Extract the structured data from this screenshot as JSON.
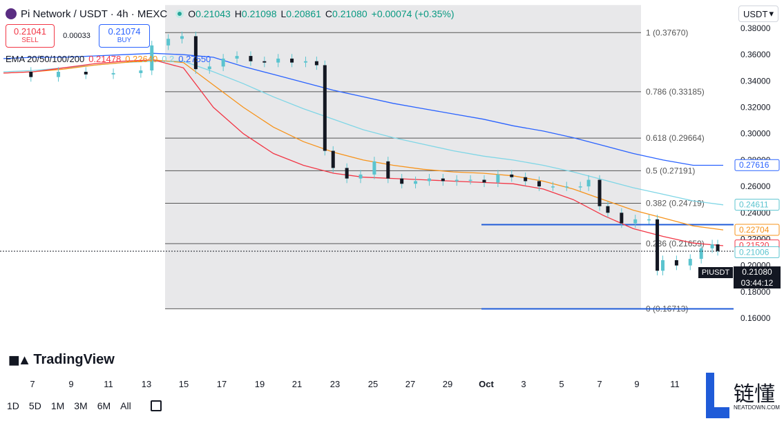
{
  "header": {
    "title": "Pi Network / USDT · 4h · MEXC",
    "ohlc": {
      "o_label": "O",
      "o": "0.21043",
      "h_label": "H",
      "h": "0.21098",
      "l_label": "L",
      "l": "0.20861",
      "c_label": "C",
      "c": "0.21080",
      "change": "+0.00074 (+0.35%)"
    }
  },
  "trade": {
    "sell_price": "0.21041",
    "sell_label": "SELL",
    "spread": "0.00033",
    "buy_price": "0.21074",
    "buy_label": "BUY"
  },
  "ema": {
    "label": "EMA 20/50/100/200",
    "v20": "0.21478",
    "v50": "0.22640",
    "v100": "0.2",
    "v200": "0.27550"
  },
  "currency": "USDT",
  "brand": "TradingView",
  "timeframes": [
    "1D",
    "5D",
    "1M",
    "3M",
    "6M",
    "All"
  ],
  "watermark": {
    "text": "链懂",
    "sub": "NEATDOWN.COM"
  },
  "last_price": {
    "symbol": "PIUSDT",
    "price": "0.21080",
    "countdown": "03:44:12"
  },
  "colors": {
    "up": "#089981",
    "down": "#131722",
    "wick": "#5bc4cf",
    "ema20": "#f23645",
    "ema50": "#f7931a",
    "ema100": "#7fd6e6",
    "ema200": "#2962ff",
    "fib_shade": "#e8e8ea",
    "fib_line": "#555555",
    "hline": "#1f5bd8"
  },
  "chart_data": {
    "type": "candlestick",
    "y_axis": {
      "min": 0.155,
      "max": 0.385,
      "ticks": [
        "0.38000",
        "0.36000",
        "0.34000",
        "0.32000",
        "0.30000",
        "0.28000",
        "0.26000",
        "0.24000",
        "0.22000",
        "0.20000",
        "0.18000",
        "0.16000"
      ]
    },
    "x_ticks": [
      "7",
      "9",
      "11",
      "13",
      "15",
      "17",
      "19",
      "21",
      "23",
      "25",
      "27",
      "29",
      "Oct",
      "3",
      "5",
      "7",
      "9",
      "11"
    ],
    "fib_levels": [
      {
        "label": "1 (0.37670)",
        "value": 0.3767
      },
      {
        "label": "0.786 (0.33185)",
        "value": 0.33185
      },
      {
        "label": "0.618 (0.29664)",
        "value": 0.29664
      },
      {
        "label": "0.5 (0.27191)",
        "value": 0.27191
      },
      {
        "label": "0.382 (0.24719)",
        "value": 0.24719
      },
      {
        "label": "0.236 (0.21659)",
        "value": 0.21659
      },
      {
        "label": "0 (0.16713)",
        "value": 0.16713
      }
    ],
    "horizontal_lines": [
      0.231,
      0.1671
    ],
    "price_labels": [
      {
        "text": "0.27616",
        "value": 0.27616,
        "color": "#2962ff",
        "filled": false
      },
      {
        "text": "0.24611",
        "value": 0.24611,
        "color": "#5bc4cf",
        "filled": false
      },
      {
        "text": "0.22704",
        "value": 0.22704,
        "color": "#f7931a",
        "filled": false
      },
      {
        "text": "0.21520",
        "value": 0.2152,
        "color": "#f23645",
        "filled": false
      },
      {
        "text": "0.21006",
        "value": 0.21006,
        "color": "#5bc4cf",
        "filled": false
      }
    ],
    "close_series": [
      {
        "t": 0.0,
        "v": 0.347
      },
      {
        "t": 1.0,
        "v": 0.343
      },
      {
        "t": 2.0,
        "v": 0.347
      },
      {
        "t": 3.0,
        "v": 0.345
      },
      {
        "t": 4.0,
        "v": 0.346
      },
      {
        "t": 5.0,
        "v": 0.348
      },
      {
        "t": 5.4,
        "v": 0.367
      },
      {
        "t": 6.0,
        "v": 0.372
      },
      {
        "t": 6.5,
        "v": 0.374
      },
      {
        "t": 7.0,
        "v": 0.349
      },
      {
        "t": 7.5,
        "v": 0.351
      },
      {
        "t": 8.0,
        "v": 0.357
      },
      {
        "t": 8.5,
        "v": 0.359
      },
      {
        "t": 9.0,
        "v": 0.355
      },
      {
        "t": 9.5,
        "v": 0.354
      },
      {
        "t": 10.0,
        "v": 0.357
      },
      {
        "t": 10.5,
        "v": 0.354
      },
      {
        "t": 11.0,
        "v": 0.355
      },
      {
        "t": 11.4,
        "v": 0.352
      },
      {
        "t": 11.7,
        "v": 0.287
      },
      {
        "t": 12.0,
        "v": 0.274
      },
      {
        "t": 12.5,
        "v": 0.266
      },
      {
        "t": 13.0,
        "v": 0.269
      },
      {
        "t": 13.5,
        "v": 0.279
      },
      {
        "t": 14.0,
        "v": 0.266
      },
      {
        "t": 14.5,
        "v": 0.262
      },
      {
        "t": 15.0,
        "v": 0.264
      },
      {
        "t": 15.5,
        "v": 0.266
      },
      {
        "t": 16.0,
        "v": 0.264
      },
      {
        "t": 16.5,
        "v": 0.265
      },
      {
        "t": 17.0,
        "v": 0.265
      },
      {
        "t": 17.5,
        "v": 0.263
      },
      {
        "t": 18.0,
        "v": 0.269
      },
      {
        "t": 18.5,
        "v": 0.267
      },
      {
        "t": 19.0,
        "v": 0.264
      },
      {
        "t": 19.5,
        "v": 0.26
      },
      {
        "t": 20.0,
        "v": 0.26
      },
      {
        "t": 20.5,
        "v": 0.26
      },
      {
        "t": 21.0,
        "v": 0.26
      },
      {
        "t": 21.3,
        "v": 0.265
      },
      {
        "t": 21.7,
        "v": 0.245
      },
      {
        "t": 22.0,
        "v": 0.24
      },
      {
        "t": 22.5,
        "v": 0.232
      },
      {
        "t": 23.0,
        "v": 0.235
      },
      {
        "t": 23.5,
        "v": 0.235
      },
      {
        "t": 23.8,
        "v": 0.196
      },
      {
        "t": 24.0,
        "v": 0.204
      },
      {
        "t": 24.5,
        "v": 0.2
      },
      {
        "t": 25.0,
        "v": 0.205
      },
      {
        "t": 25.4,
        "v": 0.213
      },
      {
        "t": 25.8,
        "v": 0.216
      },
      {
        "t": 26.0,
        "v": 0.211
      }
    ],
    "ema20": [
      0.346,
      0.347,
      0.35,
      0.353,
      0.355,
      0.356,
      0.35,
      0.32,
      0.3,
      0.285,
      0.276,
      0.27,
      0.267,
      0.266,
      0.265,
      0.264,
      0.263,
      0.262,
      0.258,
      0.25,
      0.238,
      0.228,
      0.222,
      0.217,
      0.215
    ],
    "ema50": [
      0.346,
      0.347,
      0.349,
      0.352,
      0.354,
      0.356,
      0.354,
      0.337,
      0.32,
      0.305,
      0.294,
      0.286,
      0.28,
      0.276,
      0.273,
      0.271,
      0.27,
      0.268,
      0.264,
      0.258,
      0.25,
      0.242,
      0.236,
      0.23,
      0.227
    ],
    "ema100": [
      0.347,
      0.348,
      0.35,
      0.352,
      0.354,
      0.355,
      0.355,
      0.347,
      0.338,
      0.328,
      0.319,
      0.311,
      0.303,
      0.297,
      0.292,
      0.287,
      0.283,
      0.28,
      0.276,
      0.271,
      0.265,
      0.259,
      0.254,
      0.249,
      0.246
    ],
    "ema200": [
      0.357,
      0.358,
      0.358,
      0.359,
      0.36,
      0.361,
      0.36,
      0.358,
      0.351,
      0.345,
      0.339,
      0.333,
      0.328,
      0.323,
      0.319,
      0.315,
      0.311,
      0.306,
      0.302,
      0.297,
      0.291,
      0.285,
      0.28,
      0.276,
      0.276
    ]
  }
}
